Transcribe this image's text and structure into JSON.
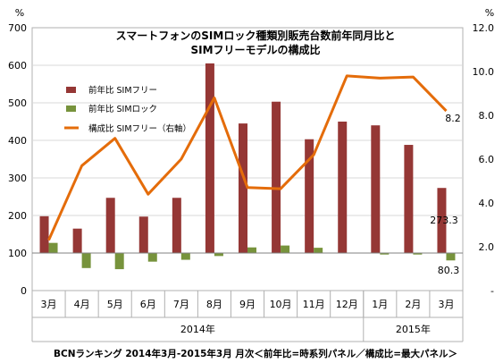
{
  "chart_data": {
    "type": "bar",
    "title_line1": "スマートフォンのSIMロック種類別販売台数前年同月比と",
    "title_line2": "SIMフリーモデルの構成比",
    "y_left_unit": "%",
    "y_right_unit": "%",
    "ylim_left": [
      0,
      700
    ],
    "ylim_right": [
      0,
      12
    ],
    "y_left_ticks": [
      "0",
      "100",
      "200",
      "300",
      "400",
      "500",
      "600",
      "700"
    ],
    "y_right_ticks": [
      "-",
      "2.0",
      "4.0",
      "6.0",
      "8.0",
      "10.0",
      "12.0"
    ],
    "categories": [
      "3月",
      "4月",
      "5月",
      "6月",
      "7月",
      "8月",
      "9月",
      "10月",
      "11月",
      "12月",
      "1月",
      "2月",
      "3月"
    ],
    "year_labels": [
      "2014年",
      "2015年"
    ],
    "series": [
      {
        "name": "前年比 SIMフリー",
        "color": "#953735",
        "axis": "left",
        "values": [
          198,
          165,
          247,
          197,
          247,
          605,
          445,
          503,
          403,
          450,
          440,
          388,
          273.3
        ]
      },
      {
        "name": "前年比 SIMロック",
        "color": "#77933C",
        "axis": "left",
        "values": [
          127,
          60,
          57,
          77,
          82,
          92,
          115,
          120,
          114,
          100,
          96,
          96,
          80.3
        ]
      },
      {
        "name": "構成比 SIMフリー（右軸）",
        "color": "#E46C0A",
        "axis": "right",
        "values": [
          2.3,
          5.7,
          6.95,
          4.4,
          6.0,
          8.8,
          4.7,
          4.65,
          6.2,
          9.8,
          9.7,
          9.75,
          8.2
        ]
      }
    ],
    "data_labels": [
      "273.3",
      "80.3",
      "8.2"
    ],
    "source": "BCNランキング 2014年3月-2015年3月 月次＜前年比=時系列パネル／構成比=最大パネル＞"
  }
}
